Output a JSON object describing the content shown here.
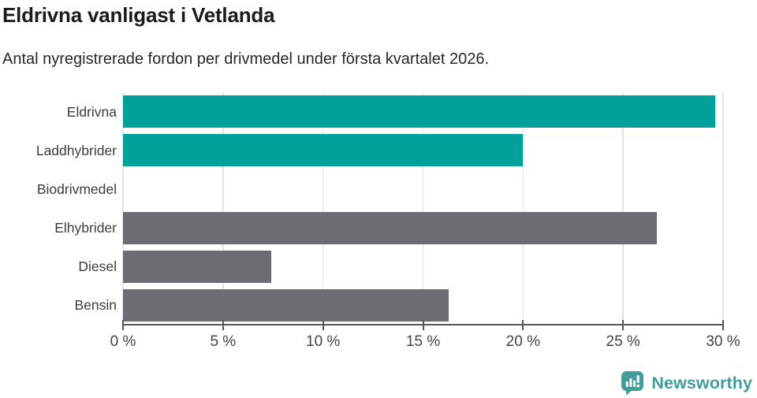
{
  "header": {
    "title": "Eldrivna vanligast i Vetlanda",
    "subtitle": "Antal nyregistrerade fordon per drivmedel under första kvartalet 2026."
  },
  "chart_data": {
    "type": "bar",
    "orientation": "horizontal",
    "title": "Eldrivna vanligast i Vetlanda",
    "subtitle": "Antal nyregistrerade fordon per drivmedel under första kvartalet 2026.",
    "categories": [
      "Eldrivna",
      "Laddhybrider",
      "Biodrivmedel",
      "Elhybrider",
      "Diesel",
      "Bensin"
    ],
    "values": [
      29.6,
      20,
      0,
      26.7,
      7.4,
      16.3
    ],
    "unit": "%",
    "xlabel": "",
    "ylabel": "",
    "xlim": [
      0,
      30
    ],
    "xticks": [
      0,
      5,
      10,
      15,
      20,
      25,
      30
    ],
    "xtick_labels": [
      "0 %",
      "5 %",
      "10 %",
      "15 %",
      "20 %",
      "25 %",
      "30 %"
    ],
    "grid": "vertical",
    "legend": "none",
    "bar_colors": [
      "#00a09b",
      "#00a09b",
      "#00a09b",
      "#6c6c73",
      "#6c6c73",
      "#6c6c73"
    ],
    "colors": {
      "teal": "#00a09b",
      "gray": "#6c6c73",
      "gridline": "#e3e3e6",
      "axis": "#55565a"
    }
  },
  "branding": {
    "logo_text": "Newsworthy",
    "logo_color": "#3f9d9a"
  }
}
